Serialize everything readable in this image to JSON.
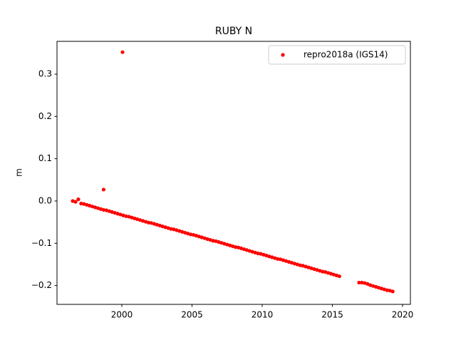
{
  "chart_data": {
    "type": "scatter",
    "title": "RUBY N",
    "ylabel": "m",
    "xlim": [
      1995.38,
      2020.56
    ],
    "ylim": [
      -0.2445,
      0.3776
    ],
    "xticks": [
      2000,
      2005,
      2010,
      2015,
      2020
    ],
    "yticks": [
      {
        "value": -0.2,
        "label": "−0.2"
      },
      {
        "value": -0.1,
        "label": "−0.1"
      },
      {
        "value": 0.0,
        "label": "0.0"
      },
      {
        "value": 0.1,
        "label": "0.1"
      },
      {
        "value": 0.2,
        "label": "0.2"
      },
      {
        "value": 0.3,
        "label": "0.3"
      }
    ],
    "grid": false,
    "legend": "upper right",
    "series": [
      {
        "name": "repro2018a (IGS14)",
        "color": "#ff0000",
        "x": [
          1996.5,
          1996.7,
          1996.9,
          1997.1,
          1997.3,
          1997.5,
          1997.7,
          1997.9,
          1998.1,
          1998.3,
          1998.5,
          1998.7,
          1998.9,
          1999.1,
          1999.3,
          1999.5,
          1999.7,
          1999.9,
          2000.1,
          2000.3,
          2000.5,
          2000.7,
          2000.9,
          2001.1,
          2001.3,
          2001.5,
          2001.7,
          2001.9,
          2002.1,
          2002.3,
          2002.5,
          2002.7,
          2002.9,
          2003.1,
          2003.3,
          2003.5,
          2003.7,
          2003.9,
          2004.1,
          2004.3,
          2004.5,
          2004.7,
          2004.9,
          2005.1,
          2005.3,
          2005.5,
          2005.7,
          2005.9,
          2006.1,
          2006.3,
          2006.5,
          2006.7,
          2006.9,
          2007.1,
          2007.3,
          2007.5,
          2007.7,
          2007.9,
          2008.1,
          2008.3,
          2008.5,
          2008.7,
          2008.9,
          2009.1,
          2009.3,
          2009.5,
          2009.7,
          2009.9,
          2010.1,
          2010.3,
          2010.5,
          2010.7,
          2010.9,
          2011.1,
          2011.3,
          2011.5,
          2011.7,
          2011.9,
          2012.1,
          2012.3,
          2012.5,
          2012.7,
          2012.9,
          2013.1,
          2013.3,
          2013.5,
          2013.7,
          2013.9,
          2014.1,
          2014.3,
          2014.5,
          2014.7,
          2014.9,
          2015.1,
          2015.3,
          2015.5,
          2016.9,
          2017.1,
          2017.3,
          2017.5,
          2017.7,
          2017.9,
          2018.1,
          2018.3,
          2018.5,
          2018.7,
          2018.9,
          2019.1,
          2019.3,
          1998.7,
          2000.05
        ],
        "values": [
          0.0,
          -0.002,
          0.004,
          -0.006,
          -0.007,
          -0.009,
          -0.011,
          -0.013,
          -0.015,
          -0.017,
          -0.019,
          -0.021,
          -0.022,
          -0.024,
          -0.026,
          -0.028,
          -0.03,
          -0.032,
          -0.034,
          -0.036,
          -0.037,
          -0.039,
          -0.041,
          -0.043,
          -0.045,
          -0.047,
          -0.049,
          -0.051,
          -0.052,
          -0.054,
          -0.056,
          -0.058,
          -0.06,
          -0.062,
          -0.064,
          -0.066,
          -0.067,
          -0.069,
          -0.071,
          -0.073,
          -0.075,
          -0.077,
          -0.079,
          -0.08,
          -0.082,
          -0.084,
          -0.086,
          -0.088,
          -0.09,
          -0.092,
          -0.094,
          -0.095,
          -0.097,
          -0.099,
          -0.101,
          -0.103,
          -0.105,
          -0.107,
          -0.109,
          -0.11,
          -0.112,
          -0.114,
          -0.116,
          -0.118,
          -0.12,
          -0.122,
          -0.124,
          -0.125,
          -0.127,
          -0.129,
          -0.131,
          -0.133,
          -0.135,
          -0.137,
          -0.138,
          -0.14,
          -0.142,
          -0.144,
          -0.146,
          -0.148,
          -0.15,
          -0.152,
          -0.153,
          -0.155,
          -0.157,
          -0.159,
          -0.161,
          -0.163,
          -0.165,
          -0.167,
          -0.168,
          -0.17,
          -0.172,
          -0.174,
          -0.176,
          -0.178,
          -0.193,
          -0.193,
          -0.194,
          -0.196,
          -0.199,
          -0.201,
          -0.203,
          -0.205,
          -0.207,
          -0.209,
          -0.211,
          -0.212,
          -0.214,
          0.027,
          0.352
        ]
      }
    ]
  }
}
